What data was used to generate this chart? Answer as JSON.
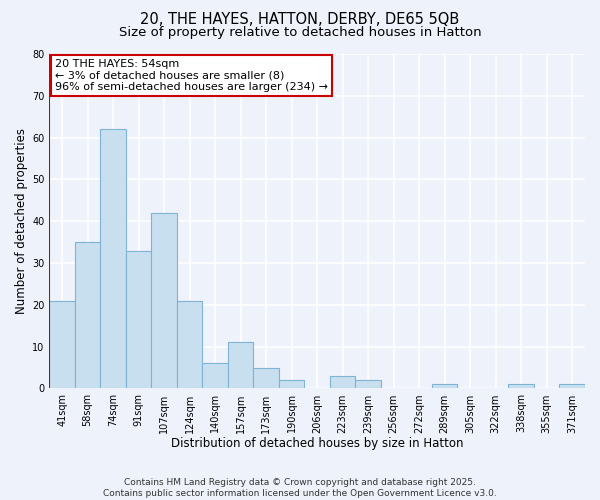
{
  "title": "20, THE HAYES, HATTON, DERBY, DE65 5QB",
  "subtitle": "Size of property relative to detached houses in Hatton",
  "xlabel": "Distribution of detached houses by size in Hatton",
  "ylabel": "Number of detached properties",
  "categories": [
    "41sqm",
    "58sqm",
    "74sqm",
    "91sqm",
    "107sqm",
    "124sqm",
    "140sqm",
    "157sqm",
    "173sqm",
    "190sqm",
    "206sqm",
    "223sqm",
    "239sqm",
    "256sqm",
    "272sqm",
    "289sqm",
    "305sqm",
    "322sqm",
    "338sqm",
    "355sqm",
    "371sqm"
  ],
  "values": [
    21,
    35,
    62,
    33,
    42,
    21,
    6,
    11,
    5,
    2,
    0,
    3,
    2,
    0,
    0,
    1,
    0,
    0,
    1,
    0,
    1
  ],
  "bar_color": "#c8dff0",
  "bar_edge_color": "#7fb3d3",
  "highlight_color": "#cc0000",
  "ylim": [
    0,
    80
  ],
  "yticks": [
    0,
    10,
    20,
    30,
    40,
    50,
    60,
    70,
    80
  ],
  "annotation_title": "20 THE HAYES: 54sqm",
  "annotation_line1": "← 3% of detached houses are smaller (8)",
  "annotation_line2": "96% of semi-detached houses are larger (234) →",
  "annotation_box_color": "#ffffff",
  "annotation_border_color": "#cc0000",
  "footer_line1": "Contains HM Land Registry data © Crown copyright and database right 2025.",
  "footer_line2": "Contains public sector information licensed under the Open Government Licence v3.0.",
  "bg_color": "#eef2fa",
  "grid_color": "#ffffff",
  "title_fontsize": 10.5,
  "subtitle_fontsize": 9.5,
  "axis_label_fontsize": 8.5,
  "tick_fontsize": 7,
  "annotation_fontsize": 8,
  "footer_fontsize": 6.5
}
